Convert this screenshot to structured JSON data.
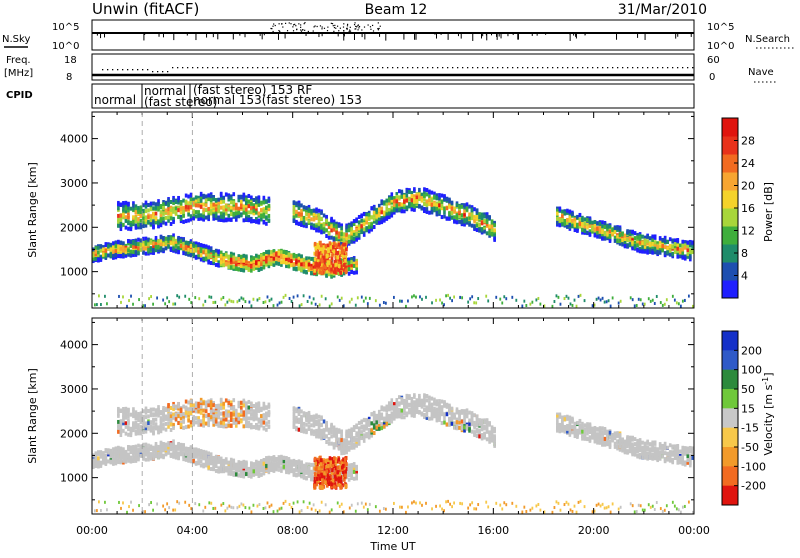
{
  "header": {
    "station": "Unwin (fitACF)",
    "beam": "Beam 12",
    "date": "31/Mar/2010"
  },
  "strips": {
    "nsky_label": "N.Sky",
    "nsky_top": "10^5",
    "nsky_bottom": "10^0",
    "nsearch_label": "N.Search",
    "freq_label": "Freq.",
    "freq_unit": "[MHz]",
    "freq_top": "18",
    "freq_bottom": "8",
    "nave_top": "60",
    "nave_bottom": "0",
    "nave_label": "Nave",
    "cpid_label": "CPID",
    "cpid_segments": [
      {
        "label": "normal"
      },
      {
        "label": "normal\n(fast stereo)"
      },
      {
        "label": "(fast stereo)  153 RF"
      },
      {
        "label": "normal  153(fast stereo)  153"
      }
    ]
  },
  "chart_data": [
    {
      "type": "heatmap",
      "quantity": "Power",
      "ylabel": "Slant Range [km]",
      "xlabel": "",
      "xlim": [
        "00:00",
        "24:00"
      ],
      "ylim": [
        180,
        4600
      ],
      "yticks": [
        1000,
        2000,
        3000,
        4000
      ],
      "xticks": [
        "00:00",
        "04:00",
        "08:00",
        "12:00",
        "16:00",
        "20:00",
        "00:00"
      ],
      "colorbar": {
        "label": "Power [dB]",
        "ticks": [
          4,
          8,
          12,
          16,
          20,
          24,
          28
        ],
        "colors": [
          "#1f1fff",
          "#1d4fb0",
          "#1f8c6a",
          "#3fae3c",
          "#a8d63a",
          "#f4d22a",
          "#f7a531",
          "#f26b21",
          "#e8321b",
          "#e0140e"
        ]
      },
      "echo_bands": [
        {
          "t_start": 0,
          "t_end": 10.5,
          "range_center": [
            1450,
            1550,
            1620,
            1700,
            1500,
            1300,
            1200,
            1400,
            1200,
            1100,
            1200
          ],
          "width": 350
        },
        {
          "t_start": 1,
          "t_end": 7,
          "range_center": [
            2300,
            2300,
            2400,
            2500,
            2500,
            2500,
            2400
          ],
          "width": 600
        },
        {
          "t_start": 8,
          "t_end": 16,
          "range_center": [
            2400,
            2200,
            1800,
            2200,
            2600,
            2700,
            2500,
            2300,
            2000
          ],
          "width": 500
        },
        {
          "t_start": 18.5,
          "t_end": 24,
          "range_center": [
            2300,
            2100,
            1900,
            1700,
            1600,
            1500
          ],
          "width": 400
        }
      ]
    },
    {
      "type": "heatmap",
      "quantity": "Velocity",
      "ylabel": "Slant Range [km]",
      "xlabel": "Time UT",
      "xlim": [
        "00:00",
        "24:00"
      ],
      "ylim": [
        180,
        4600
      ],
      "yticks": [
        1000,
        2000,
        3000,
        4000
      ],
      "xticks": [
        "00:00",
        "04:00",
        "08:00",
        "12:00",
        "16:00",
        "20:00",
        "00:00"
      ],
      "colorbar": {
        "label": "Velocity [m s^-1]",
        "ticks": [
          "200",
          "100",
          "50",
          "15",
          "-15",
          "-50",
          "-100",
          "-200"
        ],
        "colors": [
          "#1430c8",
          "#2f5ac8",
          "#2c8a3c",
          "#6fc83a",
          "#c8c8c8",
          "#f7c84a",
          "#f29a2a",
          "#f26b21",
          "#e0140e"
        ]
      }
    }
  ]
}
